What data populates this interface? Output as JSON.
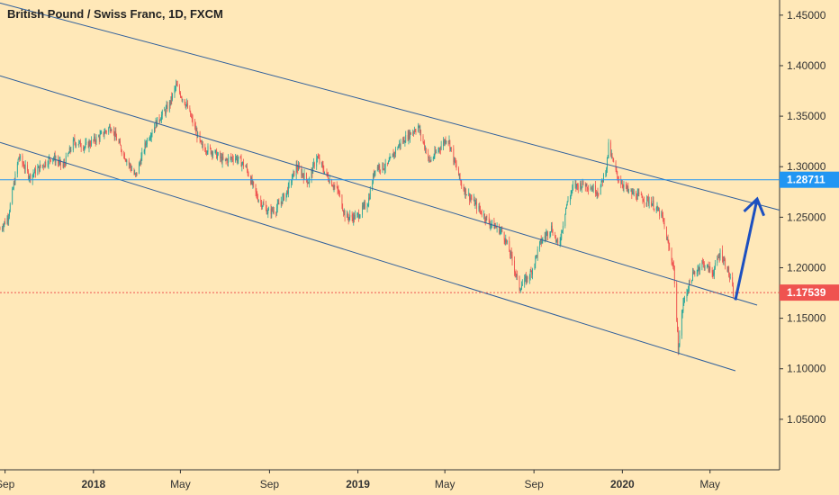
{
  "title": "British Pound / Swiss Franc, 1D, FXCM",
  "colors": {
    "background": "#ffe8b8",
    "up": "#26a69a",
    "down": "#ef5350",
    "trendline": "#2f5f9c",
    "horizontal_line": "#2196f3",
    "current_price": "#ef5350",
    "arrow": "#1c4fc0"
  },
  "chart_data": {
    "type": "candlestick",
    "ylim": [
      1.0,
      1.465
    ],
    "y_ticks": [
      "1.05000",
      "1.10000",
      "1.15000",
      "1.20000",
      "1.25000",
      "1.30000",
      "1.35000",
      "1.40000",
      "1.45000"
    ],
    "x_ticks": [
      "Sep",
      "2018",
      "May",
      "Sep",
      "2019",
      "May",
      "Sep",
      "2020",
      "May"
    ],
    "x_tick_dates": [
      "2017-09-01",
      "2018-01-01",
      "2018-05-01",
      "2018-09-01",
      "2019-01-01",
      "2019-05-01",
      "2019-09-01",
      "2020-01-01",
      "2020-05-01"
    ],
    "x_range": [
      "2017-08-25",
      "2020-08-05"
    ],
    "price_path": [
      [
        "2017-08-25",
        1.238
      ],
      [
        "2017-09-05",
        1.25
      ],
      [
        "2017-09-20",
        1.31
      ],
      [
        "2017-10-05",
        1.29
      ],
      [
        "2017-10-20",
        1.3
      ],
      [
        "2017-11-05",
        1.31
      ],
      [
        "2017-11-20",
        1.3
      ],
      [
        "2017-12-05",
        1.325
      ],
      [
        "2017-12-20",
        1.32
      ],
      [
        "2018-01-10",
        1.33
      ],
      [
        "2018-01-25",
        1.34
      ],
      [
        "2018-02-10",
        1.315
      ],
      [
        "2018-02-28",
        1.29
      ],
      [
        "2018-03-15",
        1.325
      ],
      [
        "2018-03-30",
        1.345
      ],
      [
        "2018-04-15",
        1.36
      ],
      [
        "2018-04-25",
        1.38
      ],
      [
        "2018-05-10",
        1.36
      ],
      [
        "2018-05-30",
        1.32
      ],
      [
        "2018-06-15",
        1.315
      ],
      [
        "2018-06-30",
        1.305
      ],
      [
        "2018-07-15",
        1.31
      ],
      [
        "2018-07-30",
        1.3
      ],
      [
        "2018-08-15",
        1.27
      ],
      [
        "2018-08-30",
        1.255
      ],
      [
        "2018-09-10",
        1.258
      ],
      [
        "2018-09-25",
        1.275
      ],
      [
        "2018-10-08",
        1.3
      ],
      [
        "2018-10-25",
        1.285
      ],
      [
        "2018-11-05",
        1.31
      ],
      [
        "2018-11-20",
        1.29
      ],
      [
        "2018-12-05",
        1.275
      ],
      [
        "2018-12-15",
        1.25
      ],
      [
        "2018-12-30",
        1.25
      ],
      [
        "2019-01-15",
        1.265
      ],
      [
        "2019-01-25",
        1.3
      ],
      [
        "2019-02-10",
        1.3
      ],
      [
        "2019-02-25",
        1.32
      ],
      [
        "2019-03-10",
        1.33
      ],
      [
        "2019-03-25",
        1.34
      ],
      [
        "2019-04-10",
        1.305
      ],
      [
        "2019-04-25",
        1.32
      ],
      [
        "2019-05-05",
        1.33
      ],
      [
        "2019-05-12",
        1.31
      ],
      [
        "2019-05-25",
        1.28
      ],
      [
        "2019-06-15",
        1.26
      ],
      [
        "2019-07-01",
        1.245
      ],
      [
        "2019-07-20",
        1.235
      ],
      [
        "2019-08-01",
        1.21
      ],
      [
        "2019-08-12",
        1.18
      ],
      [
        "2019-08-28",
        1.195
      ],
      [
        "2019-09-10",
        1.225
      ],
      [
        "2019-09-25",
        1.24
      ],
      [
        "2019-10-05",
        1.22
      ],
      [
        "2019-10-15",
        1.26
      ],
      [
        "2019-10-25",
        1.28
      ],
      [
        "2019-11-10",
        1.283
      ],
      [
        "2019-11-30",
        1.275
      ],
      [
        "2019-12-10",
        1.3
      ],
      [
        "2019-12-13",
        1.32
      ],
      [
        "2019-12-25",
        1.29
      ],
      [
        "2020-01-10",
        1.275
      ],
      [
        "2020-01-25",
        1.27
      ],
      [
        "2020-02-10",
        1.265
      ],
      [
        "2020-02-25",
        1.25
      ],
      [
        "2020-03-05",
        1.22
      ],
      [
        "2020-03-12",
        1.2
      ],
      [
        "2020-03-18",
        1.12
      ],
      [
        "2020-03-25",
        1.165
      ],
      [
        "2020-04-05",
        1.19
      ],
      [
        "2020-04-20",
        1.205
      ],
      [
        "2020-05-05",
        1.195
      ],
      [
        "2020-05-15",
        1.215
      ],
      [
        "2020-05-25",
        1.2
      ],
      [
        "2020-06-02",
        1.175
      ]
    ],
    "channel_lines": [
      {
        "from": [
          "2017-08-25",
          1.462
        ],
        "to": [
          "2020-08-05",
          1.257
        ]
      },
      {
        "from": [
          "2017-08-25",
          1.39
        ],
        "to": [
          "2020-07-05",
          1.163
        ]
      },
      {
        "from": [
          "2017-08-25",
          1.324
        ],
        "to": [
          "2020-06-05",
          1.098
        ]
      }
    ],
    "horizontal_lines": [
      {
        "value": 1.28711,
        "label": "1.28711",
        "style": "solid"
      },
      {
        "value": 1.17539,
        "label": "1.17539",
        "style": "dotted",
        "current": true
      }
    ],
    "annotations": [
      {
        "type": "arrow",
        "from": [
          "2020-06-05",
          1.168
        ],
        "to": [
          "2020-07-05",
          1.268
        ]
      }
    ]
  }
}
